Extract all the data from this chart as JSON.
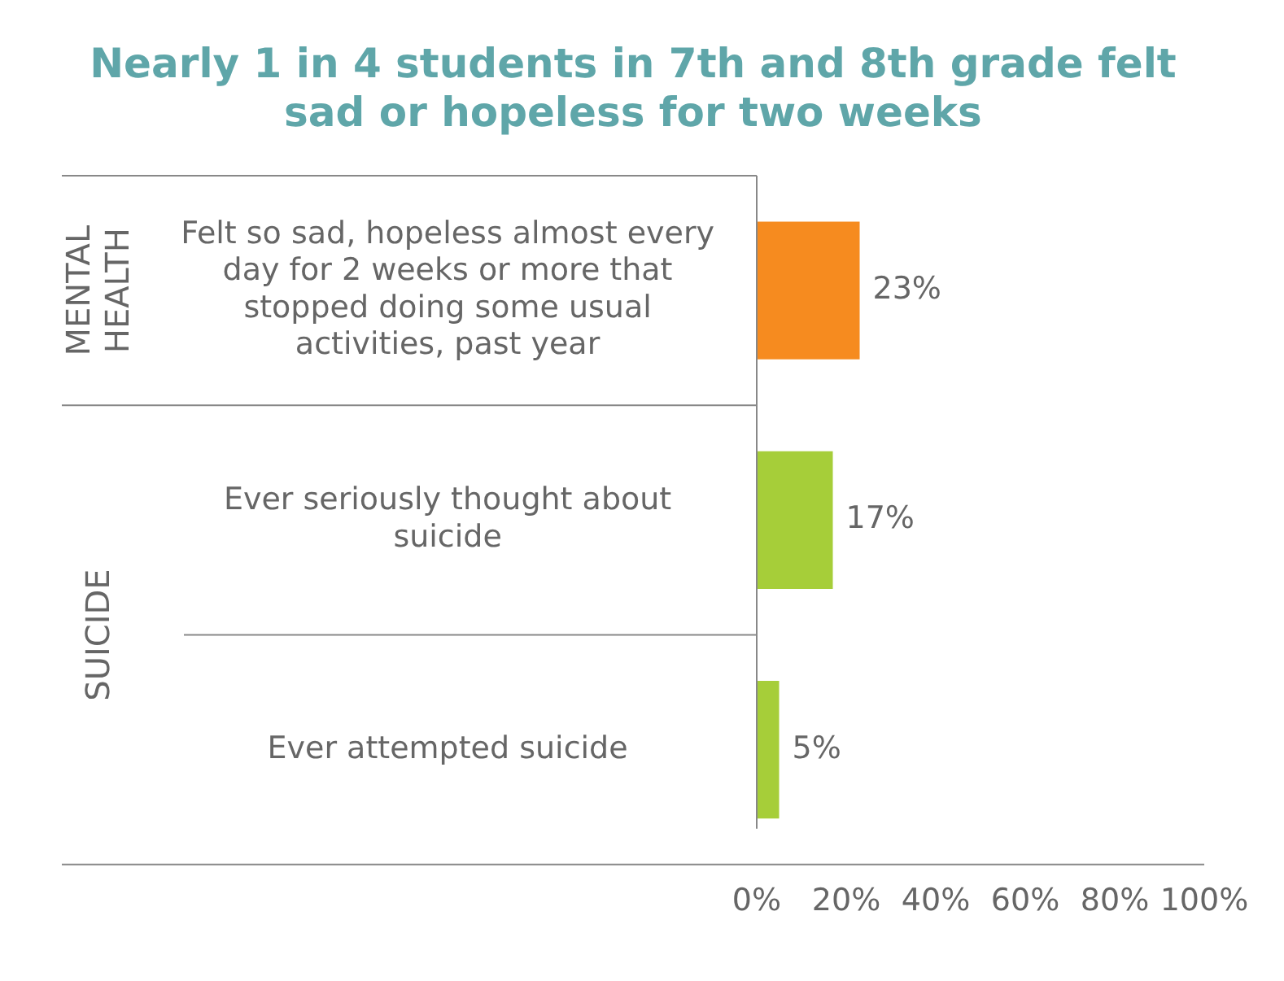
{
  "chart_data": {
    "type": "bar",
    "orientation": "horizontal",
    "title": "Nearly 1 in 4 students in 7th and 8th grade felt sad or hopeless for two weeks",
    "categories": [
      "Felt so sad, hopeless almost every day for 2 weeks or more that stopped doing some usual activities, past year",
      "Ever seriously thought about suicide",
      "Ever attempted suicide"
    ],
    "values": [
      23,
      17,
      5
    ],
    "colors": [
      "#f68b1f",
      "#a6ce39",
      "#a6ce39"
    ],
    "value_labels": [
      "23%",
      "17%",
      "5%"
    ],
    "xlim": [
      0,
      100
    ],
    "xticks": [
      {
        "value": 0,
        "label": "0%"
      },
      {
        "value": 20,
        "label": "20%"
      },
      {
        "value": 40,
        "label": "40%"
      },
      {
        "value": 60,
        "label": "60%"
      },
      {
        "value": 80,
        "label": "80%"
      },
      {
        "value": 100,
        "label": "100%"
      }
    ],
    "annotations": [
      "MENTAL HEALTH",
      "SUICIDE"
    ],
    "grid": false,
    "legend": false
  }
}
